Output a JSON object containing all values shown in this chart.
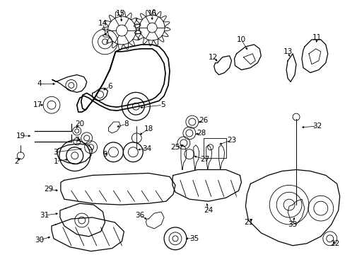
{
  "background_color": "#ffffff",
  "fig_width": 4.89,
  "fig_height": 3.6,
  "dpi": 100,
  "image_b64": ""
}
